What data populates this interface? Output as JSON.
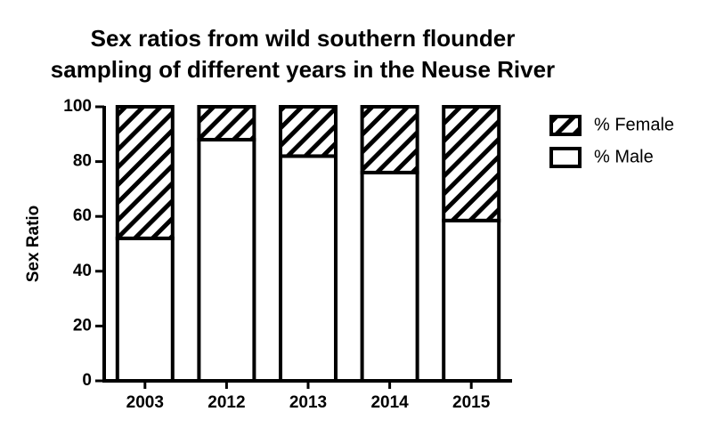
{
  "chart_data": {
    "type": "bar",
    "stacked": true,
    "title": [
      "Sex ratios from wild southern flounder",
      "sampling of different years in the Neuse River"
    ],
    "ylabel": "Sex Ratio",
    "categories": [
      "2003",
      "2012",
      "2013",
      "2014",
      "2015"
    ],
    "series": [
      {
        "name": "% Female",
        "color": "#000000",
        "pattern": "hatch",
        "values": [
          48,
          12,
          18,
          24,
          41.5
        ]
      },
      {
        "name": "% Male",
        "color": "#ffffff",
        "values": [
          52,
          88,
          82,
          76,
          58.5
        ]
      }
    ],
    "ylim": [
      0,
      100
    ],
    "yticks": [
      0,
      20,
      40,
      60,
      80,
      100
    ],
    "grid": false,
    "legend": "upper right"
  }
}
